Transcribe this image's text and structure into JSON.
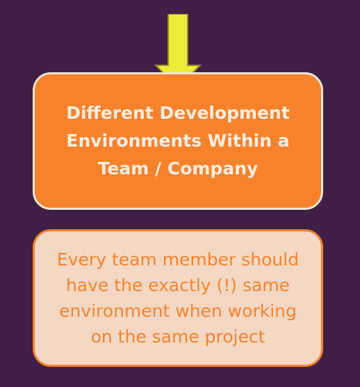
{
  "colors": {
    "background": "#3f1f46",
    "arrow": "#ecec36",
    "primary_box": "#f7822c",
    "primary_text": "#fbeee3",
    "note_box": "#f4d8c4",
    "note_text": "#f7822c"
  },
  "icons": {
    "arrow": "down-arrow-icon"
  },
  "diagram": {
    "main_box": {
      "text": "Different Development Environments Within a Team / Company"
    },
    "note_box": {
      "text": "Every team member should have the exactly (!) same environment when working on the same project"
    }
  }
}
